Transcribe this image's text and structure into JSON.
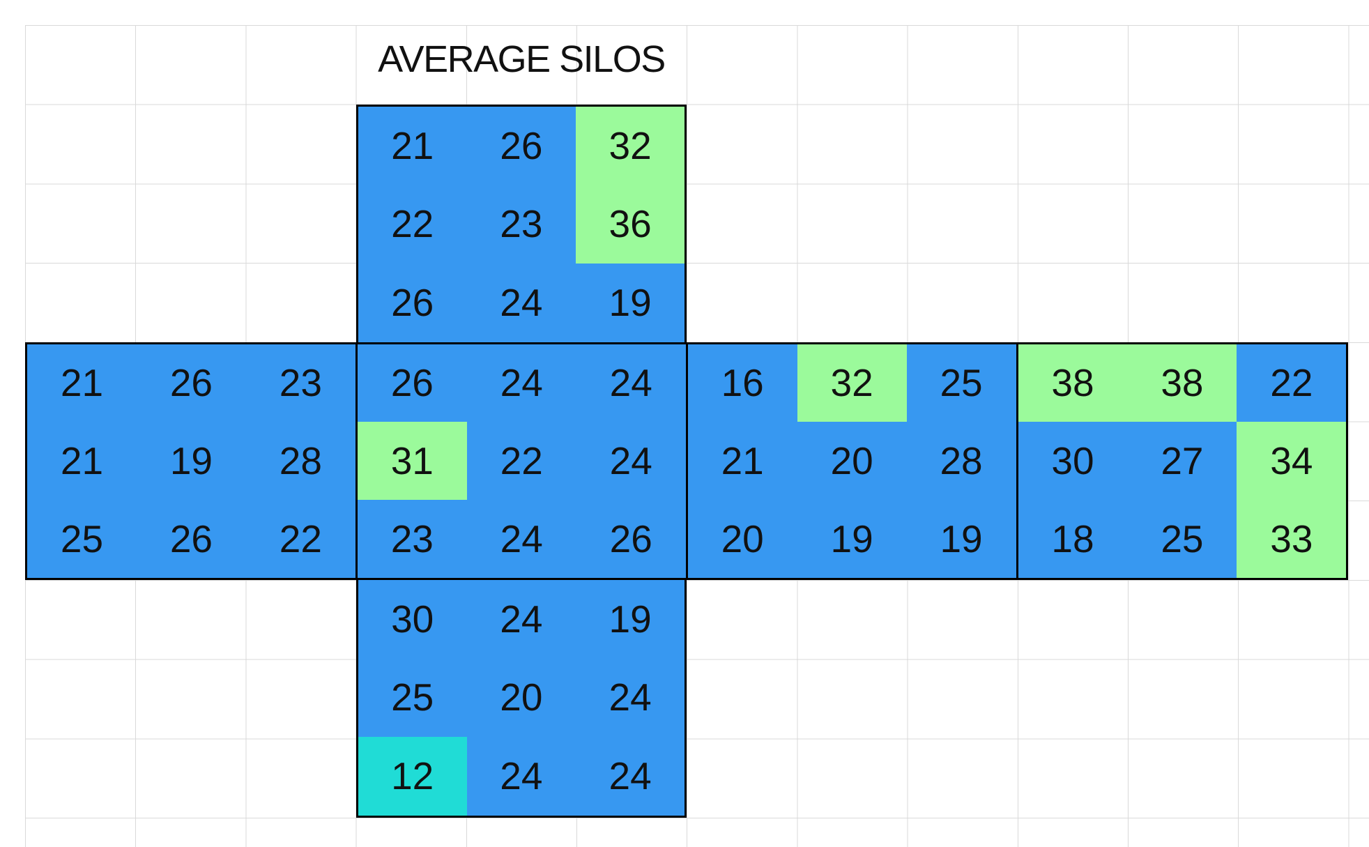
{
  "title": "AVERAGE SILOS",
  "colors": {
    "cell_blue": "#3798F1",
    "cell_green": "#9BFA9B",
    "cell_cyan": "#20DCD6",
    "gridline": "#D9D9D9",
    "block_border": "#000000",
    "text": "#111111",
    "background": "#FFFFFF"
  },
  "net": {
    "top": {
      "label": "top-face",
      "rows": [
        [
          {
            "v": "21",
            "fill": "blue"
          },
          {
            "v": "26",
            "fill": "blue"
          },
          {
            "v": "32",
            "fill": "green"
          }
        ],
        [
          {
            "v": "22",
            "fill": "blue"
          },
          {
            "v": "23",
            "fill": "blue"
          },
          {
            "v": "36",
            "fill": "green"
          }
        ],
        [
          {
            "v": "26",
            "fill": "blue"
          },
          {
            "v": "24",
            "fill": "blue"
          },
          {
            "v": "19",
            "fill": "blue"
          }
        ]
      ]
    },
    "left": {
      "label": "left-face",
      "rows": [
        [
          {
            "v": "21",
            "fill": "blue"
          },
          {
            "v": "26",
            "fill": "blue"
          },
          {
            "v": "23",
            "fill": "blue"
          }
        ],
        [
          {
            "v": "21",
            "fill": "blue"
          },
          {
            "v": "19",
            "fill": "blue"
          },
          {
            "v": "28",
            "fill": "blue"
          }
        ],
        [
          {
            "v": "25",
            "fill": "blue"
          },
          {
            "v": "26",
            "fill": "blue"
          },
          {
            "v": "22",
            "fill": "blue"
          }
        ]
      ]
    },
    "center": {
      "label": "center-face",
      "rows": [
        [
          {
            "v": "26",
            "fill": "blue"
          },
          {
            "v": "24",
            "fill": "blue"
          },
          {
            "v": "24",
            "fill": "blue"
          }
        ],
        [
          {
            "v": "31",
            "fill": "green"
          },
          {
            "v": "22",
            "fill": "blue"
          },
          {
            "v": "24",
            "fill": "blue"
          }
        ],
        [
          {
            "v": "23",
            "fill": "blue"
          },
          {
            "v": "24",
            "fill": "blue"
          },
          {
            "v": "26",
            "fill": "blue"
          }
        ]
      ]
    },
    "middle_right": {
      "label": "middle-right-face",
      "rows": [
        [
          {
            "v": "16",
            "fill": "blue"
          },
          {
            "v": "32",
            "fill": "green"
          },
          {
            "v": "25",
            "fill": "blue"
          }
        ],
        [
          {
            "v": "21",
            "fill": "blue"
          },
          {
            "v": "20",
            "fill": "blue"
          },
          {
            "v": "28",
            "fill": "blue"
          }
        ],
        [
          {
            "v": "20",
            "fill": "blue"
          },
          {
            "v": "19",
            "fill": "blue"
          },
          {
            "v": "19",
            "fill": "blue"
          }
        ]
      ]
    },
    "right": {
      "label": "right-face",
      "rows": [
        [
          {
            "v": "38",
            "fill": "green"
          },
          {
            "v": "38",
            "fill": "green"
          },
          {
            "v": "22",
            "fill": "blue"
          }
        ],
        [
          {
            "v": "30",
            "fill": "blue"
          },
          {
            "v": "27",
            "fill": "blue"
          },
          {
            "v": "34",
            "fill": "green"
          }
        ],
        [
          {
            "v": "18",
            "fill": "blue"
          },
          {
            "v": "25",
            "fill": "blue"
          },
          {
            "v": "33",
            "fill": "green"
          }
        ]
      ]
    },
    "bottom": {
      "label": "bottom-face",
      "rows": [
        [
          {
            "v": "30",
            "fill": "blue"
          },
          {
            "v": "24",
            "fill": "blue"
          },
          {
            "v": "19",
            "fill": "blue"
          }
        ],
        [
          {
            "v": "25",
            "fill": "blue"
          },
          {
            "v": "20",
            "fill": "blue"
          },
          {
            "v": "24",
            "fill": "blue"
          }
        ],
        [
          {
            "v": "12",
            "fill": "cyan"
          },
          {
            "v": "24",
            "fill": "blue"
          },
          {
            "v": "24",
            "fill": "blue"
          }
        ]
      ]
    }
  }
}
